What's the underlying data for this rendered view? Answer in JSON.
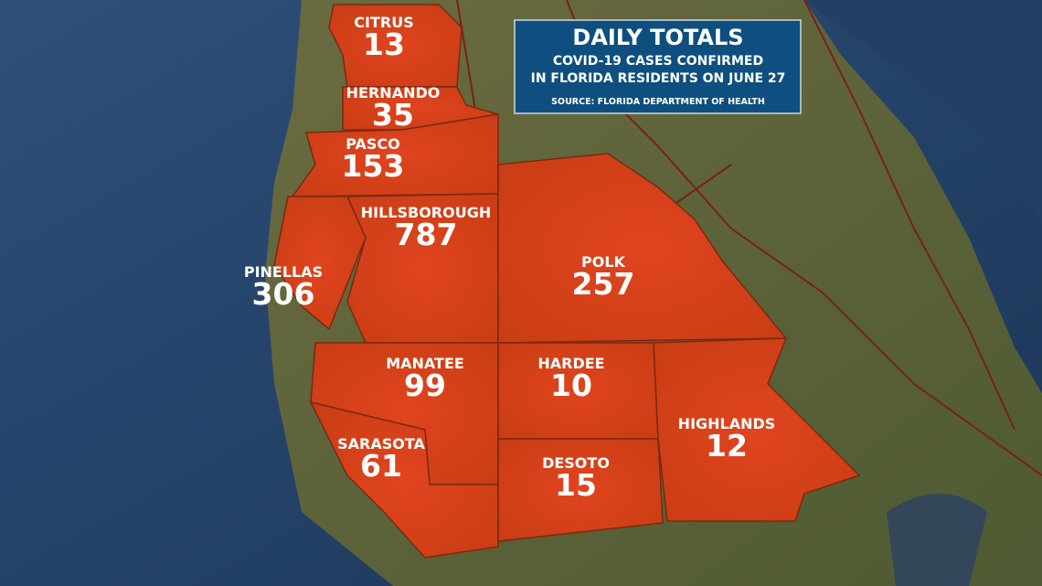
{
  "header": {
    "title": "DAILY TOTALS",
    "subtitle_lines": [
      "COVID-19 CASES CONFIRMED",
      "IN FLORIDA RESIDENTS ON JUNE 27"
    ],
    "source": "SOURCE: FLORIDA DEPARTMENT OF HEALTH"
  },
  "counties": [
    {
      "name": "CITRUS",
      "count": "13"
    },
    {
      "name": "HERNANDO",
      "count": "35"
    },
    {
      "name": "PASCO",
      "count": "153"
    },
    {
      "name": "HILLSBOROUGH",
      "count": "787"
    },
    {
      "name": "PINELLAS",
      "count": "306"
    },
    {
      "name": "POLK",
      "count": "257"
    },
    {
      "name": "MANATEE",
      "count": "99"
    },
    {
      "name": "HARDEE",
      "count": "10"
    },
    {
      "name": "HIGHLANDS",
      "count": "12"
    },
    {
      "name": "SARASOTA",
      "count": "61"
    },
    {
      "name": "DESOTO",
      "count": "15"
    }
  ]
}
